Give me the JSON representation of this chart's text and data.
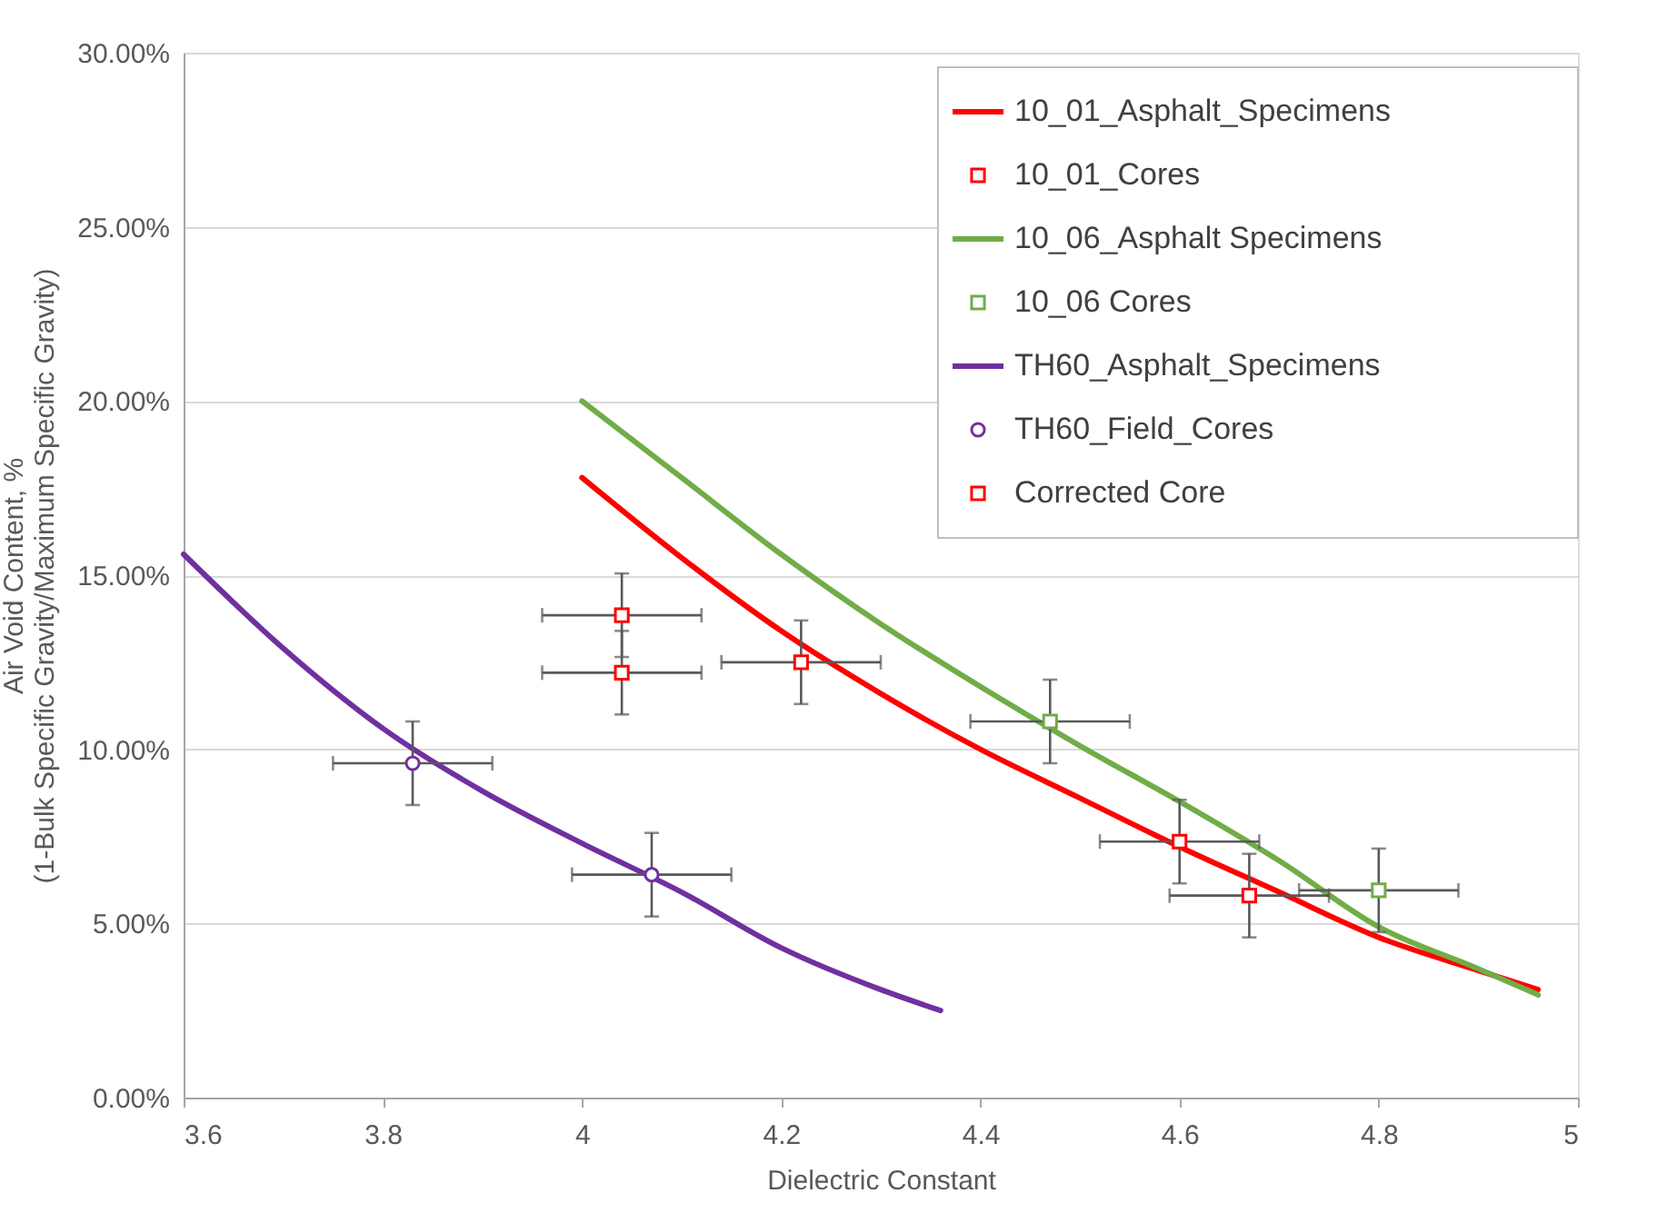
{
  "chart_data": {
    "type": "line",
    "xlabel": "Dielectric Constant",
    "ylabel": "Air Void Content, %\n(1-Bulk Specific Gravity/Maximum Specific Gravity)",
    "xlim": [
      3.6,
      5
    ],
    "xticks": [
      3.6,
      3.8,
      4,
      4.2,
      4.4,
      4.6,
      4.8,
      5
    ],
    "ylim": [
      0,
      30
    ],
    "yticks": [
      {
        "value": 0,
        "label": "0.00%"
      },
      {
        "value": 5,
        "label": "5.00%"
      },
      {
        "value": 10,
        "label": "10.00%"
      },
      {
        "value": 15,
        "label": "15.00%"
      },
      {
        "value": 20,
        "label": "20.00%"
      },
      {
        "value": 25,
        "label": "25.00%"
      },
      {
        "value": 30,
        "label": "30.00%"
      }
    ],
    "grid": "y",
    "legend": "top right",
    "series": [
      {
        "name": "10_01_Asphalt_Specimens",
        "color": "#ff0000",
        "x": [
          4.0,
          4.1,
          4.2,
          4.3,
          4.4,
          4.5,
          4.6,
          4.7,
          4.8,
          4.9,
          4.96
        ],
        "values": [
          17.8,
          15.5,
          13.4,
          11.6,
          10.0,
          8.6,
          7.2,
          5.9,
          4.6,
          3.65,
          3.1
        ]
      },
      {
        "type": "scatter",
        "name": "10_01_Cores",
        "color": "#ff0000",
        "marker": "square",
        "x": [
          4.04,
          4.22,
          4.6,
          4.67
        ],
        "values": [
          12.2,
          12.5,
          7.35,
          5.8
        ],
        "xerrors": [
          0.08,
          0.08,
          0.08,
          0.08
        ],
        "errors": [
          1.2,
          1.2,
          1.2,
          1.2
        ]
      },
      {
        "name": "10_06_Asphalt Specimens",
        "color": "#70ad47",
        "x": [
          4.0,
          4.1,
          4.2,
          4.3,
          4.4,
          4.5,
          4.6,
          4.7,
          4.8,
          4.9,
          4.96
        ],
        "values": [
          20.0,
          17.8,
          15.6,
          13.6,
          11.8,
          10.1,
          8.5,
          6.8,
          4.9,
          3.7,
          2.95
        ]
      },
      {
        "type": "scatter",
        "name": "10_06 Cores",
        "color": "#70ad47",
        "marker": "square",
        "x": [
          4.47,
          4.8
        ],
        "values": [
          10.8,
          5.95
        ],
        "xerrors": [
          0.08,
          0.08
        ],
        "errors": [
          1.2,
          1.2
        ]
      },
      {
        "name": "TH60_Asphalt_Specimens",
        "color": "#7030a0",
        "x": [
          3.6,
          3.7,
          3.8,
          3.9,
          4.0,
          4.1,
          4.2,
          4.3,
          4.36
        ],
        "values": [
          15.6,
          12.9,
          10.6,
          8.8,
          7.3,
          5.9,
          4.3,
          3.1,
          2.5
        ]
      },
      {
        "type": "scatter",
        "name": "TH60_Field_Cores",
        "color": "#7030a0",
        "marker": "circle",
        "x": [
          3.83,
          4.07
        ],
        "values": [
          9.6,
          6.4
        ],
        "xerrors": [
          0.08,
          0.08
        ],
        "errors": [
          1.2,
          1.2
        ]
      },
      {
        "type": "scatter",
        "name": "Corrected Core",
        "color": "#ff0000",
        "marker": "square",
        "x": [
          4.04
        ],
        "values": [
          13.85
        ],
        "xerrors": [
          0.08
        ],
        "errors": [
          1.2
        ]
      }
    ]
  }
}
